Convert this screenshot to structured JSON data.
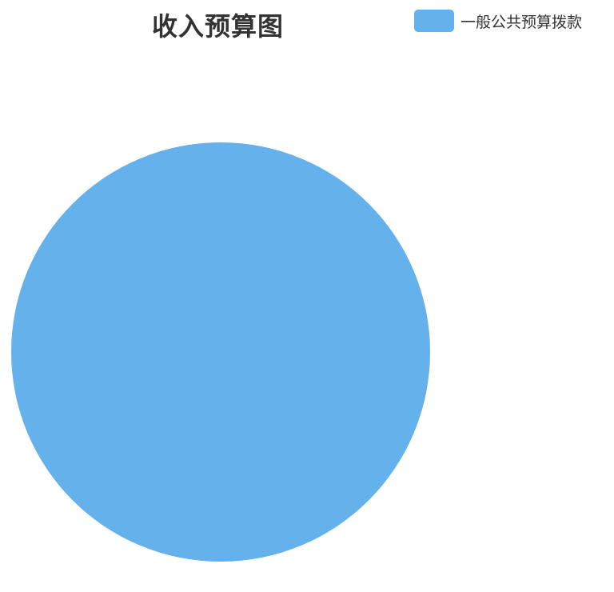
{
  "chart_data": {
    "type": "pie",
    "title": "收入预算图",
    "legend_position": "top-right",
    "slices": [
      {
        "name": "一般公共预算拨款",
        "value": 100,
        "label": "100%",
        "color": "#64b1ec"
      }
    ]
  }
}
